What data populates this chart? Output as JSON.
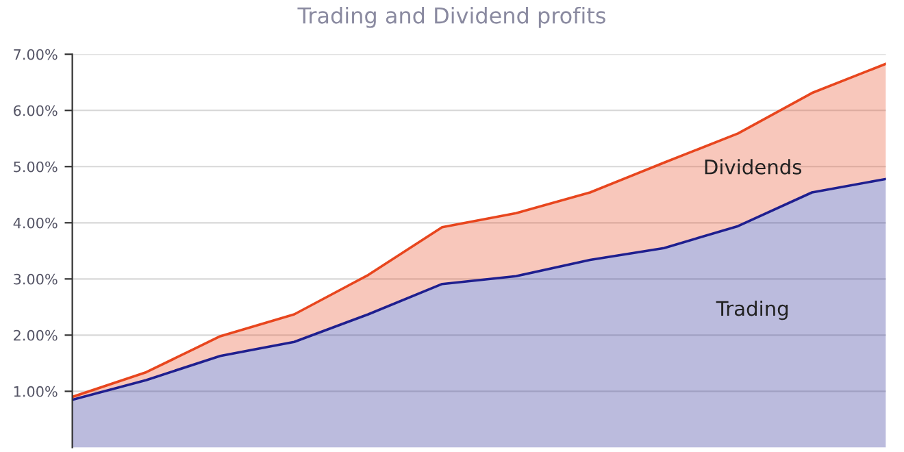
{
  "chart_data": {
    "type": "area",
    "title": "Trading and Dividend profits",
    "stacked": true,
    "categories": [
      null,
      null,
      null,
      null,
      null,
      null,
      null,
      null,
      null,
      null,
      null,
      null
    ],
    "series": [
      {
        "name": "Trading",
        "color": "#1f1f8f",
        "values": [
          0.85,
          1.2,
          1.63,
          1.88,
          2.37,
          2.91,
          3.05,
          3.34,
          3.55,
          3.94,
          4.54,
          4.78
        ]
      },
      {
        "name": "Dividends",
        "color": "#e8461e",
        "values": [
          0.05,
          0.14,
          0.35,
          0.49,
          0.7,
          1.01,
          1.12,
          1.2,
          1.52,
          1.65,
          1.77,
          2.05
        ]
      }
    ],
    "ylim": [
      0,
      7
    ],
    "yticks": [
      {
        "value": 1,
        "label": "1.00%"
      },
      {
        "value": 2,
        "label": "2.00%"
      },
      {
        "value": 3,
        "label": "3.00%"
      },
      {
        "value": 4,
        "label": "4.00%"
      },
      {
        "value": 5,
        "label": "5.00%"
      },
      {
        "value": 6,
        "label": "6.00%"
      },
      {
        "value": 7,
        "label": "7.00%"
      }
    ],
    "grid": "y",
    "tick_labels": "y",
    "legend": false
  }
}
